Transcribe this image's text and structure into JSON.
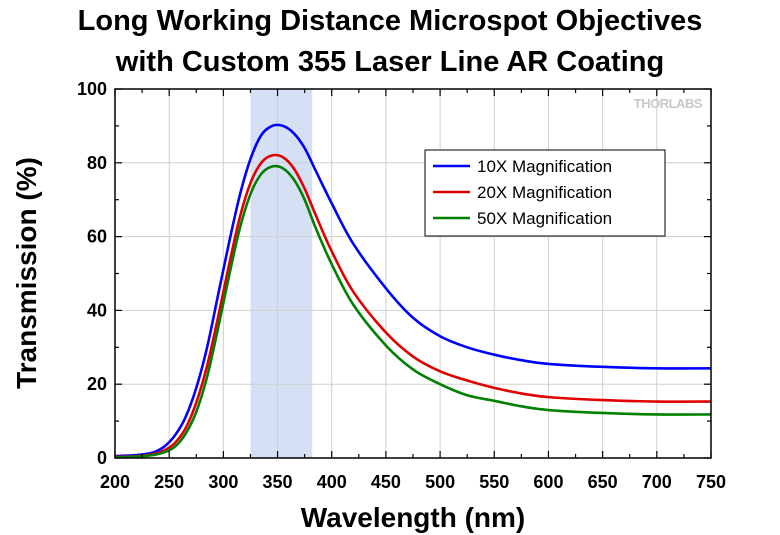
{
  "chart_data": {
    "type": "line",
    "title": "Long Working Distance Microspot Objectives",
    "subtitle": "with Custom 355 Laser Line AR Coating",
    "xlabel": "Wavelength (nm)",
    "ylabel": "Transmission (%)",
    "xlim": [
      200,
      750
    ],
    "ylim": [
      0,
      100
    ],
    "xticks": [
      200,
      250,
      300,
      350,
      400,
      450,
      500,
      550,
      600,
      650,
      700,
      750
    ],
    "yticks": [
      0,
      20,
      40,
      60,
      80,
      100
    ],
    "grid": true,
    "legend_position": "top-right",
    "watermark": "THORLABS",
    "highlight_band": [
      325,
      382
    ],
    "highlight_color": "#d5e0f5",
    "series": [
      {
        "name": "10X Magnification",
        "color": "#0000ff",
        "x": [
          200,
          220,
          235,
          245,
          255,
          265,
          275,
          285,
          295,
          305,
          315,
          325,
          335,
          345,
          355,
          365,
          375,
          385,
          400,
          420,
          450,
          475,
          500,
          525,
          550,
          575,
          600,
          650,
          700,
          750
        ],
        "y": [
          0.5,
          0.8,
          1.5,
          3,
          6,
          11,
          19,
          30,
          44,
          58,
          71,
          81,
          87.5,
          90,
          90,
          88,
          84,
          78,
          69,
          58,
          46,
          38,
          33,
          30,
          28,
          26.5,
          25.5,
          24.7,
          24.3,
          24.3
        ]
      },
      {
        "name": "20X Magnification",
        "color": "#e00000",
        "x": [
          200,
          220,
          235,
          245,
          255,
          265,
          275,
          285,
          295,
          305,
          315,
          325,
          335,
          345,
          355,
          365,
          375,
          385,
          400,
          420,
          450,
          475,
          500,
          525,
          550,
          575,
          600,
          650,
          700,
          750
        ],
        "y": [
          0.3,
          0.5,
          1,
          2,
          4,
          8,
          15,
          25,
          38,
          52,
          65,
          74.5,
          80,
          82,
          81.5,
          78.5,
          73,
          66,
          56,
          45,
          34,
          27.5,
          23.5,
          21,
          19,
          17.5,
          16.5,
          15.7,
          15.3,
          15.3
        ]
      },
      {
        "name": "50X Magnification",
        "color": "#008000",
        "x": [
          200,
          220,
          235,
          245,
          255,
          265,
          275,
          285,
          295,
          305,
          315,
          325,
          335,
          345,
          355,
          365,
          375,
          385,
          400,
          420,
          450,
          475,
          500,
          525,
          550,
          575,
          600,
          650,
          700,
          750
        ],
        "y": [
          0.2,
          0.4,
          0.8,
          1.5,
          3,
          6.5,
          12.5,
          22,
          35,
          49,
          62,
          71.5,
          77,
          79,
          78.5,
          75.5,
          70,
          62.5,
          52.5,
          41.5,
          30.5,
          24,
          20,
          17,
          15.5,
          14,
          13,
          12.2,
          11.8,
          11.8
        ]
      }
    ]
  }
}
